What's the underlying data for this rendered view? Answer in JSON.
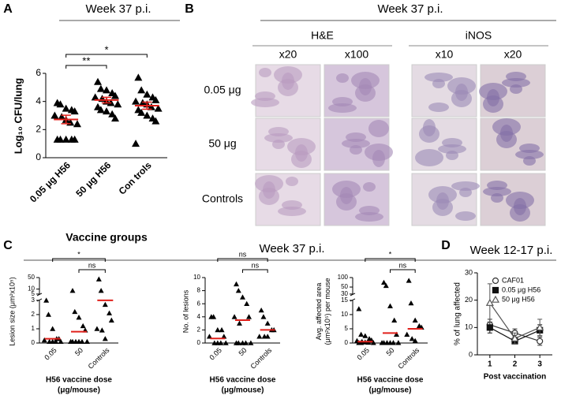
{
  "chart_data": [
    {
      "panel": "A",
      "type": "dotplot",
      "title": "Week 37 p.i.",
      "ylabel": "Log₁₀ CFU/lung",
      "xlabel": "Vaccine groups",
      "categories": [
        "0.05 μg H56",
        "50 μg H56",
        "Con trols"
      ],
      "groups": [
        {
          "values": [
            3.9,
            3.8,
            3.5,
            3.4,
            3.3,
            3.0,
            2.9,
            2.7,
            2.5,
            2.4,
            1.3,
            1.3,
            1.3,
            1.3,
            1.3
          ],
          "mean": 2.72,
          "sem": 0.3
        },
        {
          "values": [
            5.4,
            4.9,
            4.8,
            4.6,
            4.4,
            4.3,
            4.2,
            4.0,
            3.9,
            3.8,
            3.6,
            3.4,
            3.3,
            3.1,
            2.8
          ],
          "mean": 4.1,
          "sem": 0.2
        },
        {
          "values": [
            5.7,
            4.8,
            4.5,
            4.3,
            4.1,
            4.0,
            3.9,
            3.8,
            3.6,
            3.5,
            3.4,
            3.2,
            3.0,
            2.8,
            2.6,
            1.0
          ],
          "mean": 3.7,
          "sem": 0.25
        }
      ],
      "comparisons": [
        {
          "pair": [
            0,
            1
          ],
          "label": "**"
        },
        {
          "pair": [
            0,
            2
          ],
          "label": "*"
        }
      ],
      "ylim": [
        0,
        6
      ],
      "yticks": [
        0,
        2,
        4,
        6
      ],
      "marker_color": "#000000",
      "mean_color": "#e0201b"
    },
    {
      "panel": "C",
      "type": "dotplot",
      "ylabel": [
        "Lesion size (μm²x10⁵)"
      ],
      "xlabel": [
        "H56 vaccine dose",
        "(μg/mouse)"
      ],
      "categories": [
        "0.05",
        "50",
        "Controls"
      ],
      "groups": [
        {
          "values": [
            3,
            2,
            1,
            0.3,
            0.3,
            0.2,
            0.1,
            0.1,
            0.1,
            0.1
          ],
          "mean": 0.3
        },
        {
          "values": [
            8,
            2.2,
            1.8,
            1.2,
            0.9,
            0.1,
            0.1,
            0.1,
            0.1,
            0.1,
            0.1
          ],
          "mean": 0.8
        },
        {
          "values": [
            40,
            8,
            2.7,
            2.1,
            1.6,
            1.0,
            0.9,
            0.3
          ],
          "mean": 3.0
        }
      ],
      "comparisons": [
        {
          "pair": [
            1,
            2
          ],
          "label": "ns"
        },
        {
          "pair": [
            0,
            2
          ],
          "label": "*"
        }
      ],
      "ylim": [
        0,
        50
      ],
      "ybreak": [
        3,
        5
      ],
      "upper_scale": "log",
      "yticks": [
        0,
        1,
        2,
        3,
        5,
        10,
        50
      ],
      "marker_color": "#000000",
      "mean_color": "#e0201b"
    },
    {
      "panel": "C",
      "type": "dotplot",
      "ylabel": [
        "No. of lesions"
      ],
      "xlabel": [
        "H56 vaccine dose",
        "(μg/mouse)"
      ],
      "categories": [
        "0.05",
        "50",
        "Controls"
      ],
      "groups": [
        {
          "values": [
            4,
            4,
            2,
            2,
            1,
            1,
            0,
            0,
            0,
            0
          ],
          "mean": 0.7
        },
        {
          "values": [
            9,
            8,
            7,
            6,
            4,
            4,
            3,
            0,
            0,
            0,
            0,
            0
          ],
          "mean": 3.5
        },
        {
          "values": [
            5,
            4,
            3,
            2,
            2,
            1,
            1,
            1
          ],
          "mean": 2.0
        }
      ],
      "comparisons": [
        {
          "pair": [
            1,
            2
          ],
          "label": "ns"
        },
        {
          "pair": [
            0,
            2
          ],
          "label": "ns"
        }
      ],
      "ylim": [
        0,
        10
      ],
      "yticks": [
        0,
        2,
        4,
        6,
        8,
        10
      ],
      "marker_color": "#000000",
      "mean_color": "#e0201b"
    },
    {
      "panel": "C",
      "type": "dotplot",
      "ylabel": [
        "Avg. affected area",
        "(μm²x10⁵) per mouse"
      ],
      "xlabel": [
        "H56 vaccine dose",
        "(μg/mouse)"
      ],
      "categories": [
        "0.05",
        "50",
        "Controls"
      ],
      "groups": [
        {
          "values": [
            12,
            3,
            2.5,
            1.5,
            1,
            0.8,
            0.5,
            0.3,
            0.2,
            0.1,
            0.1,
            0.1
          ],
          "mean": 0.5
        },
        {
          "values": [
            70,
            55,
            13,
            8,
            3,
            0.1,
            0.1,
            0.1,
            0.1,
            0.1,
            0.1
          ],
          "mean": 3.5
        },
        {
          "values": [
            80,
            14,
            8,
            6,
            5.5,
            3,
            1.5,
            0.8
          ],
          "mean": 5.0
        }
      ],
      "comparisons": [
        {
          "pair": [
            1,
            2
          ],
          "label": "ns"
        },
        {
          "pair": [
            0,
            2
          ],
          "label": "*"
        }
      ],
      "ylim": [
        0,
        100
      ],
      "ybreak": [
        15,
        30
      ],
      "upper_scale": "log",
      "yticks": [
        0,
        5,
        10,
        15,
        30,
        50,
        100
      ],
      "marker_color": "#000000",
      "mean_color": "#e0201b"
    },
    {
      "panel": "D",
      "type": "line",
      "title": "Week 12-17 p.i.",
      "ylabel": "% of lung affected",
      "xlabel": "Post vaccination",
      "x": [
        1,
        2,
        3
      ],
      "xlim": [
        0.5,
        3.5
      ],
      "xticks": [
        1,
        2,
        3
      ],
      "ylim": [
        0,
        30
      ],
      "yticks": [
        0,
        10,
        20,
        30
      ],
      "legend": "upper right",
      "series": [
        {
          "name": "CAF01",
          "marker": "circle-open",
          "color": "#333333",
          "values": [
            11,
            8,
            5
          ],
          "errors": [
            2,
            1.5,
            1.5
          ]
        },
        {
          "name": "0.05 μg H56",
          "marker": "square",
          "color": "#111111",
          "values": [
            10,
            5,
            9
          ],
          "errors": [
            2,
            1,
            2
          ]
        },
        {
          "name": "50 μg H56",
          "marker": "triangle-open",
          "color": "#555555",
          "values": [
            19,
            6,
            10
          ],
          "errors": [
            7,
            2,
            3
          ]
        }
      ]
    }
  ],
  "panel_b": {
    "panel": "B",
    "title": "Week 37 p.i.",
    "stains": [
      {
        "label": "H&E",
        "columns": [
          "x20",
          "x100"
        ]
      },
      {
        "label": "iNOS",
        "columns": [
          "x10",
          "x20"
        ]
      }
    ],
    "rows": [
      "0.05 μg",
      "50 μg",
      "Controls"
    ]
  },
  "panel_c": {
    "panel": "C",
    "title": "Week 37 p.i."
  }
}
